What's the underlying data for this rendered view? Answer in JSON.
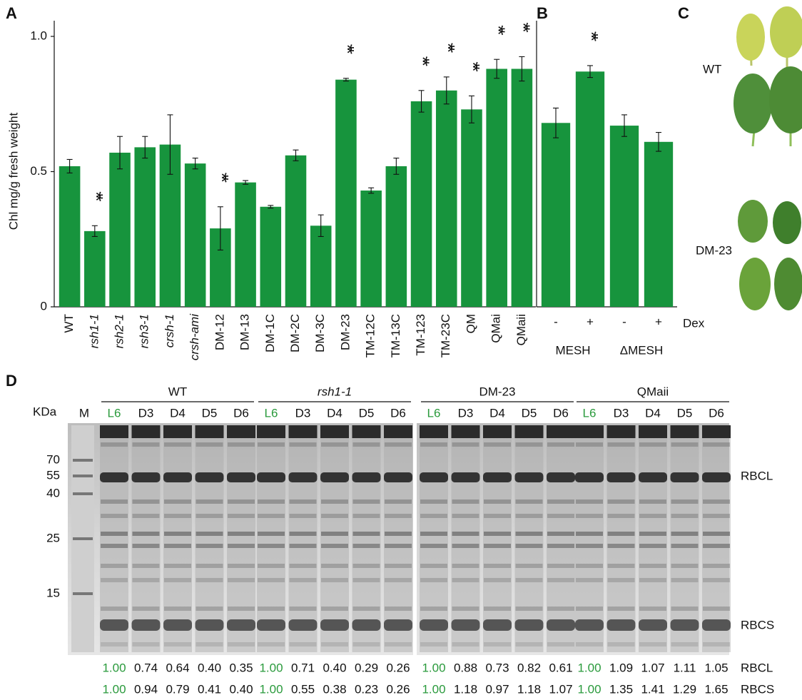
{
  "chart_data": [
    {
      "type": "bar",
      "panel": "A",
      "y_label": "Chl mg/g fresh weight",
      "categories": [
        "WT",
        "rsh1-1",
        "rsh2-1",
        "rsh3-1",
        "crsh-1",
        "crsh-ami",
        "DM-12",
        "DM-13",
        "DM-1C",
        "DM-2C",
        "DM-3C",
        "DM-23",
        "TM-12C",
        "TM-13C",
        "TM-123",
        "TM-23C",
        "QM",
        "QMai",
        "QMaii"
      ],
      "values": [
        0.52,
        0.28,
        0.57,
        0.59,
        0.6,
        0.53,
        0.29,
        0.46,
        0.37,
        0.56,
        0.3,
        0.84,
        0.43,
        0.52,
        0.76,
        0.8,
        0.73,
        0.88,
        0.88
      ],
      "errors": [
        0.025,
        0.02,
        0.06,
        0.04,
        0.11,
        0.02,
        0.08,
        0.007,
        0.005,
        0.02,
        0.04,
        0.005,
        0.01,
        0.03,
        0.04,
        0.05,
        0.05,
        0.035,
        0.045
      ],
      "significance": [
        null,
        "**",
        null,
        null,
        null,
        null,
        "**",
        null,
        null,
        null,
        null,
        "**",
        null,
        null,
        "**",
        "**",
        "**",
        "**",
        "**"
      ],
      "color": "#17943d",
      "ylim": [
        0,
        1
      ],
      "yticks": [
        0,
        0.5,
        {
          "value": 1,
          "label": "1.0"
        }
      ]
    },
    {
      "type": "bar",
      "panel": "B",
      "categories": [
        "-",
        "+",
        "-",
        "+"
      ],
      "values": [
        0.68,
        0.87,
        0.67,
        0.61
      ],
      "errors": [
        0.055,
        0.022,
        0.04,
        0.035
      ],
      "significance": [
        null,
        "**",
        null,
        null
      ],
      "groups": [
        "MESH",
        "ΔMESH"
      ],
      "condition_label": "Dex",
      "color": "#17943d",
      "ylim": [
        0,
        1
      ]
    }
  ],
  "panel_c": {
    "panel": "C",
    "rows": [
      "WT",
      "DM-23"
    ]
  },
  "panel_d": {
    "panel": "D",
    "unit_label": "KDa",
    "marker_lane": "M",
    "markers": [
      "70",
      "55",
      "40",
      "25",
      "15"
    ],
    "groups": [
      {
        "name": "WT",
        "lanes": [
          "L6",
          "D3",
          "D4",
          "D5",
          "D6"
        ]
      },
      {
        "name": "rsh1-1",
        "lanes": [
          "L6",
          "D3",
          "D4",
          "D5",
          "D6"
        ]
      },
      {
        "name": "DM-23",
        "lanes": [
          "L6",
          "D3",
          "D4",
          "D5",
          "D6"
        ]
      },
      {
        "name": "QMaii",
        "lanes": [
          "L6",
          "D3",
          "D4",
          "D5",
          "D6"
        ]
      }
    ],
    "bands": [
      "RBCL",
      "RBCS"
    ],
    "quantification": [
      {
        "label": "RBCL",
        "values": [
          "1.00",
          "0.74",
          "0.64",
          "0.40",
          "0.35",
          "1.00",
          "0.71",
          "0.40",
          "0.29",
          "0.26",
          "1.00",
          "0.88",
          "0.73",
          "0.82",
          "0.61",
          "1.00",
          "1.09",
          "1.07",
          "1.11",
          "1.05"
        ]
      },
      {
        "label": "RBCS",
        "values": [
          "1.00",
          "0.94",
          "0.79",
          "0.41",
          "0.40",
          "1.00",
          "0.55",
          "0.38",
          "0.23",
          "0.26",
          "1.00",
          "1.18",
          "0.97",
          "1.18",
          "1.07",
          "1.00",
          "1.35",
          "1.41",
          "1.29",
          "1.65"
        ]
      }
    ]
  }
}
